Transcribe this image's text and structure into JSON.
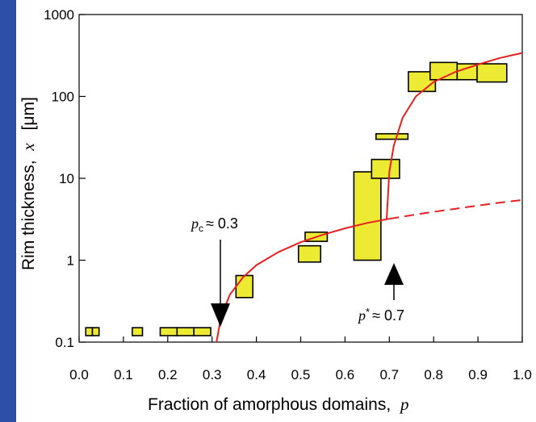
{
  "colors": {
    "slide_background": "#2e4fa8",
    "panel_background": "#ffffff",
    "box_fill": "#ecea33",
    "curve": "#e52020"
  },
  "chart_data": {
    "type": "scatter",
    "title": "",
    "xlabel": "Fraction of amorphous domains,",
    "xlabel_var": "p",
    "ylabel": "Rim thickness,",
    "ylabel_var": "x",
    "ylabel_unit": "[μm]",
    "xlim": [
      0.0,
      1.0
    ],
    "ylim": [
      0.1,
      1000
    ],
    "yscale": "log",
    "x_ticks": [
      "0.0",
      "0.1",
      "0.2",
      "0.3",
      "0.4",
      "0.5",
      "0.6",
      "0.7",
      "0.8",
      "0.9",
      "1.0"
    ],
    "y_ticks": [
      "0.1",
      "1",
      "10",
      "100",
      "1000"
    ],
    "grid": false,
    "boxes": [
      {
        "x0": 0.015,
        "x1": 0.03,
        "y0": 0.12,
        "y1": 0.15
      },
      {
        "x0": 0.03,
        "x1": 0.045,
        "y0": 0.12,
        "y1": 0.15
      },
      {
        "x0": 0.12,
        "x1": 0.143,
        "y0": 0.12,
        "y1": 0.15
      },
      {
        "x0": 0.183,
        "x1": 0.221,
        "y0": 0.12,
        "y1": 0.15
      },
      {
        "x0": 0.221,
        "x1": 0.259,
        "y0": 0.12,
        "y1": 0.15
      },
      {
        "x0": 0.259,
        "x1": 0.297,
        "y0": 0.12,
        "y1": 0.15
      },
      {
        "x0": 0.354,
        "x1": 0.392,
        "y0": 0.35,
        "y1": 0.65
      },
      {
        "x0": 0.495,
        "x1": 0.545,
        "y0": 0.95,
        "y1": 1.5
      },
      {
        "x0": 0.51,
        "x1": 0.56,
        "y0": 1.7,
        "y1": 2.2
      },
      {
        "x0": 0.62,
        "x1": 0.681,
        "y0": 1.0,
        "y1": 12
      },
      {
        "x0": 0.66,
        "x1": 0.723,
        "y0": 10,
        "y1": 17
      },
      {
        "x0": 0.67,
        "x1": 0.742,
        "y0": 30,
        "y1": 35
      },
      {
        "x0": 0.743,
        "x1": 0.804,
        "y0": 115,
        "y1": 200
      },
      {
        "x0": 0.792,
        "x1": 0.853,
        "y0": 160,
        "y1": 260
      },
      {
        "x0": 0.853,
        "x1": 0.912,
        "y0": 160,
        "y1": 250
      },
      {
        "x0": 0.898,
        "x1": 0.965,
        "y0": 150,
        "y1": 250
      }
    ],
    "lower_curve": {
      "x": [
        0.31,
        0.32,
        0.34,
        0.37,
        0.4,
        0.45,
        0.5,
        0.55,
        0.6,
        0.65,
        0.7
      ],
      "y": [
        0.1,
        0.2,
        0.38,
        0.62,
        0.87,
        1.26,
        1.66,
        2.05,
        2.45,
        2.85,
        3.2
      ],
      "dashed_x": [
        0.7,
        0.75,
        0.8,
        0.85,
        0.9,
        0.95,
        1.0
      ],
      "dashed_y": [
        3.2,
        3.55,
        3.9,
        4.25,
        4.65,
        5.05,
        5.45
      ]
    },
    "upper_curve": {
      "x": [
        0.694,
        0.7,
        0.71,
        0.73,
        0.76,
        0.8,
        0.85,
        0.9,
        0.95,
        1.0
      ],
      "y": [
        3.2,
        12,
        25,
        55,
        100,
        150,
        200,
        245,
        295,
        340
      ]
    },
    "annotations": [
      {
        "var": "p",
        "sub": "c",
        "text": "≈ 0.3",
        "x": 0.3
      },
      {
        "var": "p",
        "sup": "*",
        "text": "≈ 0.7",
        "x": 0.7
      }
    ]
  }
}
